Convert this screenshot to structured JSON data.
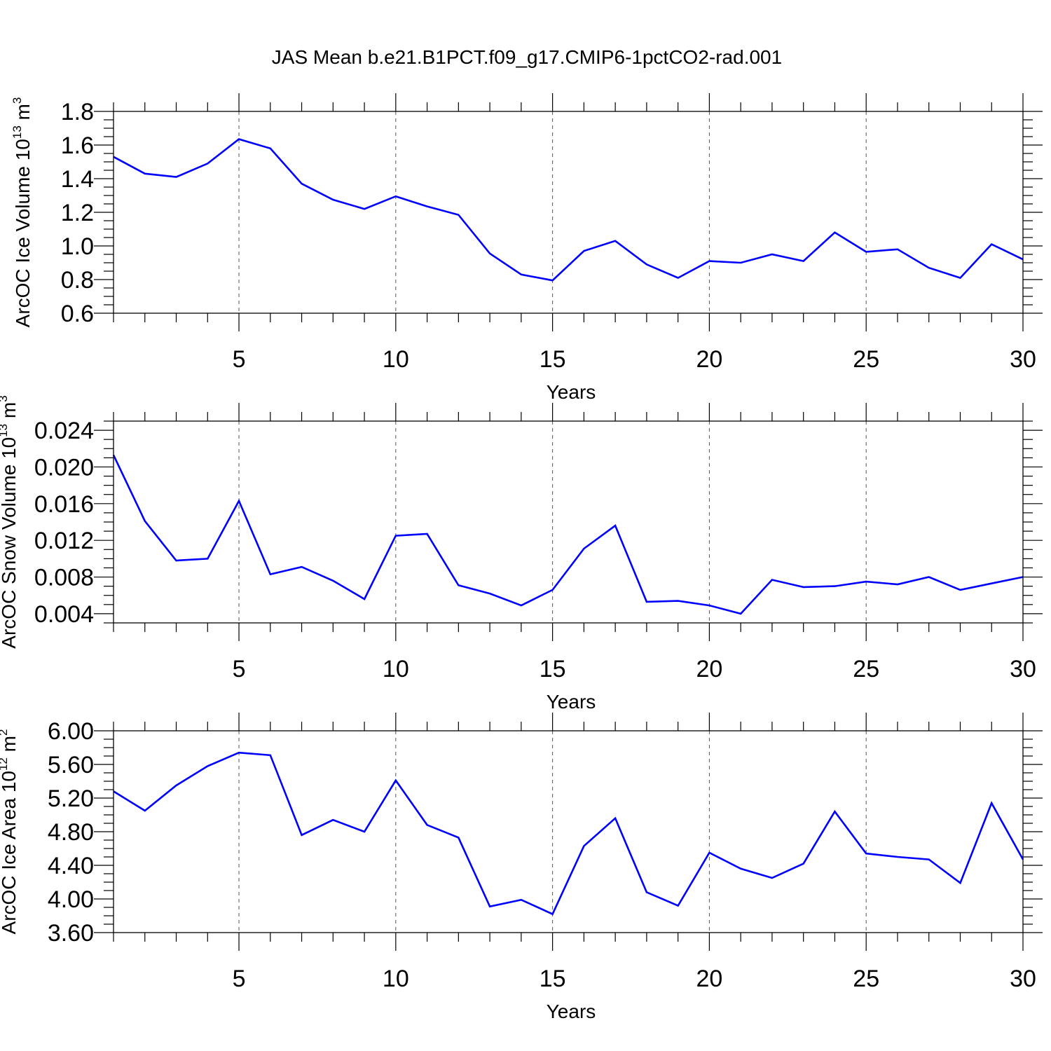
{
  "figure_title": "JAS Mean b.e21.B1PCT.f09_g17.CMIP6-1pctCO2-rad.001",
  "colors": {
    "series": "#0000ff",
    "axes": "#000000",
    "grid": "#555555",
    "background": "#ffffff"
  },
  "chart_data": [
    {
      "type": "line",
      "ylabel": "ArcOC Ice Volume 10",
      "ylabel_exponent": "13",
      "ylabel_unit": " m",
      "ylabel_unit_exponent": "3",
      "xlabel": "Years",
      "xlim": [
        1,
        30
      ],
      "ylim": [
        0.6,
        1.8
      ],
      "xticks": [
        5,
        10,
        15,
        20,
        25,
        30
      ],
      "xtick_labels": [
        "5",
        "10",
        "15",
        "20",
        "25",
        "30"
      ],
      "yticks": [
        0.6,
        0.8,
        1.0,
        1.2,
        1.4,
        1.6,
        1.8
      ],
      "ytick_labels": [
        "0.6",
        "0.8",
        "1.0",
        "1.2",
        "1.4",
        "1.6",
        "1.8"
      ],
      "x": [
        1,
        2,
        3,
        4,
        5,
        6,
        7,
        8,
        9,
        10,
        11,
        12,
        13,
        14,
        15,
        16,
        17,
        18,
        19,
        20,
        21,
        22,
        23,
        24,
        25,
        26,
        27,
        28,
        29,
        30
      ],
      "series": [
        {
          "name": "ArcOC Ice Volume",
          "values": [
            1.53,
            1.43,
            1.41,
            1.49,
            1.635,
            1.58,
            1.37,
            1.275,
            1.22,
            1.295,
            1.235,
            1.185,
            0.955,
            0.83,
            0.795,
            0.97,
            1.03,
            0.89,
            0.81,
            0.91,
            0.9,
            0.95,
            0.91,
            1.08,
            0.965,
            0.98,
            0.87,
            0.81,
            1.01,
            0.92
          ]
        }
      ]
    },
    {
      "type": "line",
      "ylabel": "ArcOC Snow Volume 10",
      "ylabel_exponent": "13",
      "ylabel_unit": " m",
      "ylabel_unit_exponent": "3",
      "xlabel": "Years",
      "xlim": [
        1,
        30
      ],
      "ylim": [
        0.003,
        0.025
      ],
      "xticks": [
        5,
        10,
        15,
        20,
        25,
        30
      ],
      "xtick_labels": [
        "5",
        "10",
        "15",
        "20",
        "25",
        "30"
      ],
      "yticks": [
        0.004,
        0.008,
        0.012,
        0.016,
        0.02,
        0.024
      ],
      "ytick_labels": [
        "0.004",
        "0.008",
        "0.012",
        "0.016",
        "0.020",
        "0.024"
      ],
      "x": [
        1,
        2,
        3,
        4,
        5,
        6,
        7,
        8,
        9,
        10,
        11,
        12,
        13,
        14,
        15,
        16,
        17,
        18,
        19,
        20,
        21,
        22,
        23,
        24,
        25,
        26,
        27,
        28,
        29,
        30
      ],
      "series": [
        {
          "name": "ArcOC Snow Volume",
          "values": [
            0.0213,
            0.0141,
            0.0098,
            0.01,
            0.0163,
            0.0083,
            0.0091,
            0.0076,
            0.0056,
            0.0125,
            0.0127,
            0.0071,
            0.0062,
            0.0049,
            0.0066,
            0.0111,
            0.0136,
            0.0053,
            0.0054,
            0.0049,
            0.004,
            0.0077,
            0.0069,
            0.007,
            0.0075,
            0.0072,
            0.008,
            0.0066,
            0.0073,
            0.008
          ]
        }
      ]
    },
    {
      "type": "line",
      "ylabel": "ArcOC Ice Area 10",
      "ylabel_exponent": "12",
      "ylabel_unit": " m",
      "ylabel_unit_exponent": "2",
      "xlabel": "Years",
      "xlim": [
        1,
        30
      ],
      "ylim": [
        3.6,
        6.0
      ],
      "xticks": [
        5,
        10,
        15,
        20,
        25,
        30
      ],
      "xtick_labels": [
        "5",
        "10",
        "15",
        "20",
        "25",
        "30"
      ],
      "yticks": [
        3.6,
        4.0,
        4.4,
        4.8,
        5.2,
        5.6,
        6.0
      ],
      "ytick_labels": [
        "3.60",
        "4.00",
        "4.40",
        "4.80",
        "5.20",
        "5.60",
        "6.00"
      ],
      "x": [
        1,
        2,
        3,
        4,
        5,
        6,
        7,
        8,
        9,
        10,
        11,
        12,
        13,
        14,
        15,
        16,
        17,
        18,
        19,
        20,
        21,
        22,
        23,
        24,
        25,
        26,
        27,
        28,
        29,
        30
      ],
      "series": [
        {
          "name": "ArcOC Ice Area",
          "values": [
            5.28,
            5.05,
            5.35,
            5.58,
            5.74,
            5.71,
            4.76,
            4.94,
            4.8,
            5.41,
            4.88,
            4.73,
            3.91,
            3.99,
            3.82,
            4.63,
            4.96,
            4.08,
            3.92,
            4.55,
            4.36,
            4.25,
            4.42,
            5.04,
            4.54,
            4.5,
            4.47,
            4.19,
            5.14,
            4.47
          ]
        }
      ]
    }
  ]
}
